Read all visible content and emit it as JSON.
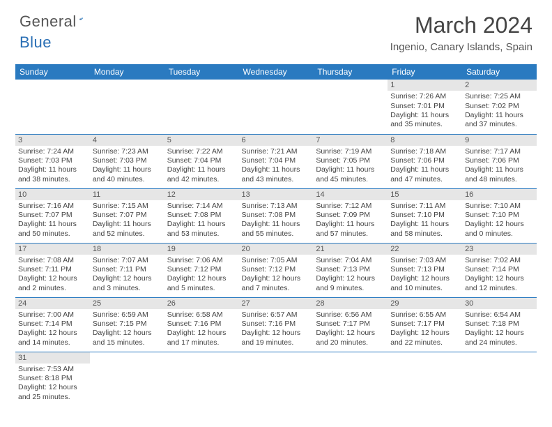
{
  "brand": {
    "part1": "General",
    "part2": "Blue"
  },
  "title": "March 2024",
  "location": "Ingenio, Canary Islands, Spain",
  "colors": {
    "headerBar": "#2a7ac0",
    "dayNumBg": "#e6e6e6",
    "rule": "#2a7ac0",
    "brandBlue": "#2a6fb5"
  },
  "weekdays": [
    "Sunday",
    "Monday",
    "Tuesday",
    "Wednesday",
    "Thursday",
    "Friday",
    "Saturday"
  ],
  "weeks": [
    [
      null,
      null,
      null,
      null,
      null,
      {
        "n": "1",
        "sr": "7:26 AM",
        "ss": "7:01 PM",
        "dl": "11 hours and 35 minutes."
      },
      {
        "n": "2",
        "sr": "7:25 AM",
        "ss": "7:02 PM",
        "dl": "11 hours and 37 minutes."
      }
    ],
    [
      {
        "n": "3",
        "sr": "7:24 AM",
        "ss": "7:03 PM",
        "dl": "11 hours and 38 minutes."
      },
      {
        "n": "4",
        "sr": "7:23 AM",
        "ss": "7:03 PM",
        "dl": "11 hours and 40 minutes."
      },
      {
        "n": "5",
        "sr": "7:22 AM",
        "ss": "7:04 PM",
        "dl": "11 hours and 42 minutes."
      },
      {
        "n": "6",
        "sr": "7:21 AM",
        "ss": "7:04 PM",
        "dl": "11 hours and 43 minutes."
      },
      {
        "n": "7",
        "sr": "7:19 AM",
        "ss": "7:05 PM",
        "dl": "11 hours and 45 minutes."
      },
      {
        "n": "8",
        "sr": "7:18 AM",
        "ss": "7:06 PM",
        "dl": "11 hours and 47 minutes."
      },
      {
        "n": "9",
        "sr": "7:17 AM",
        "ss": "7:06 PM",
        "dl": "11 hours and 48 minutes."
      }
    ],
    [
      {
        "n": "10",
        "sr": "7:16 AM",
        "ss": "7:07 PM",
        "dl": "11 hours and 50 minutes."
      },
      {
        "n": "11",
        "sr": "7:15 AM",
        "ss": "7:07 PM",
        "dl": "11 hours and 52 minutes."
      },
      {
        "n": "12",
        "sr": "7:14 AM",
        "ss": "7:08 PM",
        "dl": "11 hours and 53 minutes."
      },
      {
        "n": "13",
        "sr": "7:13 AM",
        "ss": "7:08 PM",
        "dl": "11 hours and 55 minutes."
      },
      {
        "n": "14",
        "sr": "7:12 AM",
        "ss": "7:09 PM",
        "dl": "11 hours and 57 minutes."
      },
      {
        "n": "15",
        "sr": "7:11 AM",
        "ss": "7:10 PM",
        "dl": "11 hours and 58 minutes."
      },
      {
        "n": "16",
        "sr": "7:10 AM",
        "ss": "7:10 PM",
        "dl": "12 hours and 0 minutes."
      }
    ],
    [
      {
        "n": "17",
        "sr": "7:08 AM",
        "ss": "7:11 PM",
        "dl": "12 hours and 2 minutes."
      },
      {
        "n": "18",
        "sr": "7:07 AM",
        "ss": "7:11 PM",
        "dl": "12 hours and 3 minutes."
      },
      {
        "n": "19",
        "sr": "7:06 AM",
        "ss": "7:12 PM",
        "dl": "12 hours and 5 minutes."
      },
      {
        "n": "20",
        "sr": "7:05 AM",
        "ss": "7:12 PM",
        "dl": "12 hours and 7 minutes."
      },
      {
        "n": "21",
        "sr": "7:04 AM",
        "ss": "7:13 PM",
        "dl": "12 hours and 9 minutes."
      },
      {
        "n": "22",
        "sr": "7:03 AM",
        "ss": "7:13 PM",
        "dl": "12 hours and 10 minutes."
      },
      {
        "n": "23",
        "sr": "7:02 AM",
        "ss": "7:14 PM",
        "dl": "12 hours and 12 minutes."
      }
    ],
    [
      {
        "n": "24",
        "sr": "7:00 AM",
        "ss": "7:14 PM",
        "dl": "12 hours and 14 minutes."
      },
      {
        "n": "25",
        "sr": "6:59 AM",
        "ss": "7:15 PM",
        "dl": "12 hours and 15 minutes."
      },
      {
        "n": "26",
        "sr": "6:58 AM",
        "ss": "7:16 PM",
        "dl": "12 hours and 17 minutes."
      },
      {
        "n": "27",
        "sr": "6:57 AM",
        "ss": "7:16 PM",
        "dl": "12 hours and 19 minutes."
      },
      {
        "n": "28",
        "sr": "6:56 AM",
        "ss": "7:17 PM",
        "dl": "12 hours and 20 minutes."
      },
      {
        "n": "29",
        "sr": "6:55 AM",
        "ss": "7:17 PM",
        "dl": "12 hours and 22 minutes."
      },
      {
        "n": "30",
        "sr": "6:54 AM",
        "ss": "7:18 PM",
        "dl": "12 hours and 24 minutes."
      }
    ],
    [
      {
        "n": "31",
        "sr": "7:53 AM",
        "ss": "8:18 PM",
        "dl": "12 hours and 25 minutes."
      },
      null,
      null,
      null,
      null,
      null,
      null
    ]
  ],
  "labels": {
    "sunrise": "Sunrise: ",
    "sunset": "Sunset: ",
    "daylight": "Daylight: "
  }
}
